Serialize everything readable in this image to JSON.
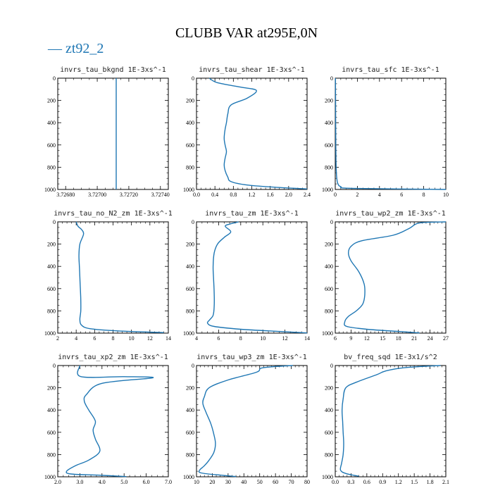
{
  "title": "CLUBB VAR at295E,0N",
  "legend": {
    "label": "zt92_2",
    "color": "#1f77b4"
  },
  "chart_data": [
    {
      "type": "line",
      "title": "invrs_tau_bkgnd   1E-3xs^-1",
      "xlim": [
        3.72675,
        3.72745
      ],
      "xticks": [
        3.7268,
        3.727,
        3.7272,
        3.7274
      ],
      "xtick_labels": [
        "3.72680",
        "3.72700",
        "3.72720",
        "3.72740"
      ],
      "ylim": [
        0,
        1000
      ],
      "yticks": [
        0,
        200,
        400,
        600,
        800,
        1000
      ],
      "y_inverted": true,
      "series": [
        {
          "x": [
            3.72712,
            3.72712
          ],
          "y": [
            0,
            1000
          ]
        }
      ]
    },
    {
      "type": "line",
      "title": "invrs_tau_shear   1E-3xs^-1",
      "xlim": [
        0,
        2.4
      ],
      "xticks": [
        0,
        0.4,
        0.8,
        1.2,
        1.6,
        2.0,
        2.4
      ],
      "xtick_labels": [
        "0.0",
        "0.4",
        "0.8",
        "1.2",
        "1.6",
        "2.0",
        "2.4"
      ],
      "ylim": [
        0,
        1000
      ],
      "yticks": [
        0,
        200,
        400,
        600,
        800,
        1000
      ],
      "y_inverted": true,
      "series": [
        {
          "x": [
            0.28,
            0.45,
            0.95,
            1.3,
            1.1,
            0.75,
            0.68,
            0.65,
            0.62,
            0.6,
            0.62,
            0.65,
            0.62,
            0.6,
            0.62,
            0.68,
            0.75,
            1.1,
            1.7,
            2.4
          ],
          "y": [
            0,
            40,
            80,
            110,
            180,
            240,
            320,
            400,
            460,
            540,
            600,
            660,
            720,
            780,
            830,
            890,
            930,
            960,
            980,
            995
          ]
        }
      ]
    },
    {
      "type": "line",
      "title": "invrs_tau_sfc   1E-3xs^-1",
      "xlim": [
        0,
        10
      ],
      "xticks": [
        0,
        2,
        4,
        6,
        8,
        10
      ],
      "xtick_labels": [
        "0",
        "2",
        "4",
        "6",
        "8",
        "10"
      ],
      "ylim": [
        0,
        1000
      ],
      "yticks": [
        0,
        200,
        400,
        600,
        800,
        1000
      ],
      "y_inverted": true,
      "series": [
        {
          "x": [
            0.02,
            0.03,
            0.04,
            0.05,
            0.07,
            0.1,
            0.15,
            0.25,
            0.5,
            1.5,
            10
          ],
          "y": [
            0,
            200,
            400,
            600,
            750,
            850,
            910,
            950,
            975,
            990,
            1000
          ]
        }
      ]
    },
    {
      "type": "line",
      "title": "invrs_tau_no_N2_zm   1E-3xs^-1",
      "xlim": [
        2,
        14
      ],
      "xticks": [
        2,
        4,
        6,
        8,
        10,
        12,
        14
      ],
      "xtick_labels": [
        "2",
        "4",
        "6",
        "8",
        "10",
        "12",
        "14"
      ],
      "ylim": [
        0,
        1000
      ],
      "yticks": [
        0,
        200,
        400,
        600,
        800,
        1000
      ],
      "y_inverted": true,
      "series": [
        {
          "x": [
            4.0,
            4.2,
            4.6,
            4.8,
            4.4,
            4.3,
            4.35,
            4.4,
            4.45,
            4.5,
            4.5,
            4.4,
            4.6,
            5.5,
            8.5,
            13.5
          ],
          "y": [
            0,
            40,
            70,
            110,
            200,
            300,
            400,
            500,
            600,
            700,
            800,
            880,
            930,
            960,
            980,
            995
          ]
        }
      ]
    },
    {
      "type": "line",
      "title": "invrs_tau_zm   1E-3xs^-1",
      "xlim": [
        4,
        14
      ],
      "xticks": [
        4,
        6,
        8,
        10,
        12,
        14
      ],
      "xtick_labels": [
        "4",
        "6",
        "8",
        "10",
        "12",
        "14"
      ],
      "ylim": [
        0,
        1000
      ],
      "yticks": [
        0,
        200,
        400,
        600,
        800,
        1000
      ],
      "y_inverted": true,
      "series": [
        {
          "x": [
            7.8,
            7.0,
            6.6,
            7.1,
            6.5,
            5.9,
            5.6,
            5.5,
            5.55,
            5.6,
            5.6,
            5.5,
            5.2,
            5.0,
            5.6,
            8.0,
            11.5,
            14.0
          ],
          "y": [
            0,
            20,
            40,
            90,
            140,
            200,
            280,
            400,
            520,
            640,
            760,
            840,
            880,
            910,
            940,
            965,
            985,
            998
          ]
        }
      ]
    },
    {
      "type": "line",
      "title": "invrs_tau_wp2_zm   1E-3xs^-1",
      "xlim": [
        6,
        27
      ],
      "xticks": [
        6,
        9,
        12,
        15,
        18,
        21,
        24,
        27
      ],
      "xtick_labels": [
        "6",
        "9",
        "12",
        "15",
        "18",
        "21",
        "24",
        "27"
      ],
      "ylim": [
        0,
        1000
      ],
      "yticks": [
        0,
        200,
        400,
        600,
        800,
        1000
      ],
      "y_inverted": true,
      "series": [
        {
          "x": [
            27,
            22,
            20,
            17,
            11,
            9,
            8.5,
            9,
            10.5,
            11.5,
            11.6,
            11.2,
            10,
            8.5,
            7.8,
            8.2,
            12,
            18,
            22
          ],
          "y": [
            0,
            10,
            60,
            120,
            170,
            220,
            280,
            350,
            450,
            560,
            660,
            740,
            800,
            850,
            900,
            940,
            965,
            985,
            998
          ]
        }
      ]
    },
    {
      "type": "line",
      "title": "invrs_tau_xp2_zm   1E-3xs^-1",
      "xlim": [
        2,
        7
      ],
      "xticks": [
        2,
        3,
        4,
        5,
        6,
        7
      ],
      "xtick_labels": [
        "2.0",
        "3.0",
        "4.0",
        "5.0",
        "6.0",
        "7.0"
      ],
      "ylim": [
        0,
        1000
      ],
      "yticks": [
        0,
        200,
        400,
        600,
        800,
        1000
      ],
      "y_inverted": true,
      "series": [
        {
          "x": [
            3.0,
            3.05,
            5.0,
            6.3,
            4.0,
            3.3,
            3.2,
            3.4,
            3.7,
            3.6,
            3.7,
            3.9,
            3.4,
            2.8,
            2.4,
            2.6,
            3.8,
            5.1
          ],
          "y": [
            0,
            100,
            100,
            110,
            160,
            260,
            320,
            400,
            500,
            580,
            660,
            770,
            850,
            900,
            950,
            975,
            985,
            998
          ]
        }
      ]
    },
    {
      "type": "line",
      "title": "invrs_tau_wp3_zm   1E-3xs^-1",
      "xlim": [
        10,
        80
      ],
      "xticks": [
        10,
        20,
        30,
        40,
        50,
        60,
        70,
        80
      ],
      "xtick_labels": [
        "10",
        "20",
        "30",
        "40",
        "50",
        "60",
        "70",
        "80"
      ],
      "ylim": [
        0,
        1000
      ],
      "yticks": [
        0,
        200,
        400,
        600,
        800,
        1000
      ],
      "y_inverted": true,
      "series": [
        {
          "x": [
            71,
            52,
            48,
            30,
            18,
            15,
            14,
            16,
            19,
            21,
            22,
            21,
            18,
            15,
            12,
            13,
            25,
            35
          ],
          "y": [
            0,
            20,
            60,
            130,
            200,
            280,
            340,
            420,
            520,
            620,
            700,
            780,
            850,
            900,
            940,
            965,
            985,
            998
          ]
        }
      ]
    },
    {
      "type": "line",
      "title": "bv_freq_sqd   1E-3x1/s^2",
      "xlim": [
        0,
        2.1
      ],
      "xticks": [
        0,
        0.3,
        0.6,
        0.9,
        1.2,
        1.5,
        1.8,
        2.1
      ],
      "xtick_labels": [
        "0.0",
        "0.3",
        "0.6",
        "0.9",
        "1.2",
        "1.5",
        "1.8",
        "2.1"
      ],
      "ylim": [
        0,
        1000
      ],
      "yticks": [
        0,
        200,
        400,
        600,
        800,
        1000
      ],
      "y_inverted": true,
      "series": [
        {
          "x": [
            2.0,
            1.3,
            0.95,
            0.8,
            0.4,
            0.2,
            0.15,
            0.13,
            0.14,
            0.15,
            0.16,
            0.15,
            0.12,
            0.1,
            0.2,
            0.45
          ],
          "y": [
            0,
            20,
            50,
            80,
            150,
            200,
            300,
            400,
            500,
            600,
            700,
            800,
            880,
            940,
            970,
            995
          ]
        }
      ]
    }
  ]
}
